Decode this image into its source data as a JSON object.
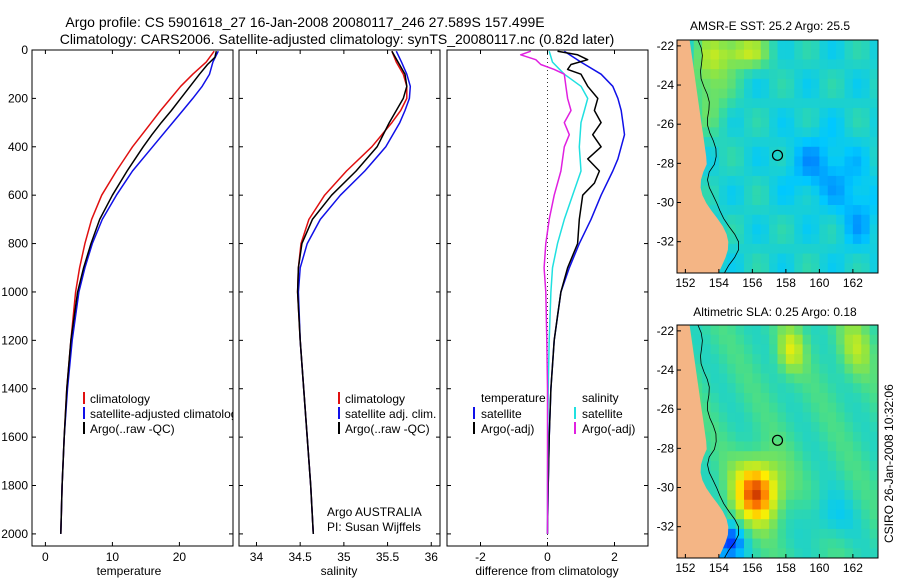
{
  "title": {
    "line1": "Argo profile: CS 5901618_27 16-Jan-2008 20080117_246 27.589S 157.499E",
    "line2": "Climatology: CARS2006. Satellite-adjusted climatology: synTS_20080117.nc (0.82d later)"
  },
  "colors": {
    "climatology": "#e01010",
    "satellite": "#1010e8",
    "argo": "#000000",
    "sal_satellite": "#20e0e0",
    "sal_argo": "#e020e0"
  },
  "chart_data": [
    {
      "id": "temperature",
      "type": "line",
      "xlabel": "temperature",
      "xlim": [
        -2,
        28
      ],
      "ylim": [
        0,
        2050
      ],
      "xticks": [
        0,
        10,
        20
      ],
      "yticks": [
        0,
        200,
        400,
        600,
        800,
        1000,
        1200,
        1400,
        1600,
        1800,
        2000
      ],
      "legend": [
        "climatology",
        "satellite-adjusted climatology",
        "Argo(..raw -QC)"
      ],
      "series": [
        {
          "name": "climatology",
          "color": "#e01010",
          "depth": [
            5,
            50,
            100,
            150,
            200,
            250,
            300,
            400,
            500,
            600,
            700,
            800,
            900,
            1000,
            1200,
            1400,
            1600,
            1800,
            2000
          ],
          "values": [
            25.2,
            24.0,
            22.0,
            20.2,
            18.7,
            17.2,
            15.8,
            13.0,
            10.6,
            8.4,
            6.9,
            5.9,
            5.1,
            4.5,
            3.8,
            3.2,
            2.8,
            2.5,
            2.3
          ]
        },
        {
          "name": "satellite-adjusted climatology",
          "color": "#1010e8",
          "depth": [
            5,
            50,
            100,
            150,
            200,
            250,
            300,
            400,
            500,
            600,
            700,
            800,
            900,
            1000,
            1200,
            1400,
            1600,
            1800,
            2000
          ],
          "values": [
            25.8,
            25.0,
            24.5,
            23.4,
            22.0,
            20.5,
            19.0,
            16.0,
            13.0,
            10.6,
            8.5,
            7.0,
            5.9,
            5.0,
            4.0,
            3.3,
            2.8,
            2.5,
            2.3
          ]
        },
        {
          "name": "Argo(..raw -QC)",
          "color": "#000000",
          "depth": [
            5,
            30,
            60,
            100,
            150,
            200,
            250,
            300,
            350,
            400,
            500,
            600,
            700,
            800,
            900,
            1000,
            1200,
            1400,
            1600,
            1800,
            2000
          ],
          "values": [
            25.5,
            25.3,
            24.2,
            23.0,
            21.6,
            20.2,
            18.8,
            17.3,
            15.9,
            14.6,
            12.2,
            10.0,
            8.1,
            6.8,
            5.7,
            4.8,
            3.8,
            3.2,
            2.8,
            2.5,
            2.3
          ]
        }
      ]
    },
    {
      "id": "salinity",
      "type": "line",
      "xlabel": "salinity",
      "xlim": [
        33.8,
        36.1
      ],
      "ylim": [
        0,
        2050
      ],
      "xticks": [
        34,
        34.5,
        35,
        35.5,
        36
      ],
      "legend": [
        "climatology",
        "satellite adj. clim.",
        "Argo(..raw -QC)"
      ],
      "annotation": [
        "Argo AUSTRALIA",
        "PI: Susan Wijffels"
      ],
      "series": [
        {
          "name": "climatology",
          "color": "#e01010",
          "depth": [
            5,
            50,
            100,
            150,
            200,
            250,
            300,
            400,
            500,
            600,
            700,
            800,
            900,
            1000,
            1200,
            1400,
            1600,
            1800,
            2000
          ],
          "values": [
            35.55,
            35.6,
            35.68,
            35.72,
            35.72,
            35.65,
            35.55,
            35.32,
            35.03,
            34.78,
            34.6,
            34.51,
            34.48,
            34.47,
            34.5,
            34.54,
            34.58,
            34.62,
            34.65
          ]
        },
        {
          "name": "satellite adj. clim.",
          "color": "#1010e8",
          "depth": [
            5,
            50,
            100,
            150,
            200,
            250,
            300,
            400,
            500,
            600,
            700,
            800,
            900,
            1000,
            1200,
            1400,
            1600,
            1800,
            2000
          ],
          "values": [
            35.6,
            35.66,
            35.72,
            35.76,
            35.75,
            35.7,
            35.64,
            35.48,
            35.24,
            34.96,
            34.73,
            34.58,
            34.5,
            34.48,
            34.5,
            34.54,
            34.58,
            34.62,
            34.65
          ]
        },
        {
          "name": "Argo(..raw -QC)",
          "color": "#000000",
          "depth": [
            5,
            50,
            100,
            150,
            200,
            250,
            300,
            400,
            500,
            600,
            700,
            800,
            900,
            1000,
            1200,
            1400,
            1600,
            1800,
            2000
          ],
          "values": [
            35.55,
            35.62,
            35.7,
            35.72,
            35.68,
            35.6,
            35.52,
            35.38,
            35.14,
            34.86,
            34.64,
            34.52,
            34.48,
            34.47,
            34.5,
            34.54,
            34.58,
            34.62,
            34.65
          ]
        }
      ]
    },
    {
      "id": "difference",
      "type": "line",
      "xlabel": "difference from climatology",
      "xlim": [
        -3,
        3
      ],
      "ylim": [
        0,
        2050
      ],
      "xticks": [
        -2,
        0,
        2
      ],
      "legend_headers": [
        "temperature",
        "salinity"
      ],
      "legend": [
        "satellite",
        "Argo(-adj)",
        "satellite",
        "Argo(-adj)"
      ],
      "series": [
        {
          "name": "temperature satellite",
          "color": "#1010e8",
          "depth": [
            5,
            50,
            100,
            150,
            200,
            250,
            300,
            350,
            400,
            450,
            500,
            600,
            700,
            800,
            900,
            1000,
            1200,
            1400,
            1600,
            1800,
            2000
          ],
          "values": [
            0.5,
            1.0,
            1.6,
            1.95,
            2.1,
            2.2,
            2.25,
            2.3,
            2.2,
            2.1,
            1.95,
            1.6,
            1.3,
            0.95,
            0.65,
            0.4,
            0.2,
            0.1,
            0.05,
            0.02,
            0.0
          ]
        },
        {
          "name": "temperature Argo(-adj)",
          "color": "#000000",
          "depth": [
            5,
            20,
            40,
            60,
            80,
            100,
            150,
            200,
            250,
            300,
            350,
            400,
            450,
            500,
            550,
            600,
            700,
            800,
            900,
            1000,
            1100,
            1200,
            1400,
            1600,
            1800,
            2000
          ],
          "values": [
            0.3,
            0.9,
            1.2,
            0.7,
            0.6,
            1.0,
            1.2,
            1.5,
            1.4,
            1.6,
            1.35,
            1.6,
            1.2,
            1.55,
            1.4,
            1.05,
            0.95,
            0.9,
            0.6,
            0.4,
            0.3,
            0.2,
            0.1,
            0.05,
            0.02,
            0.0
          ]
        },
        {
          "name": "salinity satellite",
          "color": "#20e0e0",
          "depth": [
            5,
            50,
            100,
            150,
            200,
            250,
            300,
            400,
            500,
            600,
            700,
            800,
            900,
            1000,
            1200,
            1400,
            1600,
            1800,
            2000
          ],
          "values": [
            0.05,
            0.15,
            0.5,
            1.0,
            1.2,
            1.1,
            1.0,
            0.95,
            1.0,
            0.75,
            0.5,
            0.3,
            0.15,
            0.1,
            0.05,
            0.02,
            0.01,
            0.0,
            0.0
          ]
        },
        {
          "name": "salinity Argo(-adj)",
          "color": "#e020e0",
          "depth": [
            5,
            20,
            40,
            60,
            80,
            100,
            150,
            200,
            250,
            300,
            350,
            400,
            450,
            500,
            600,
            700,
            800,
            900,
            1000,
            1200,
            1400,
            1600,
            1800,
            2000
          ],
          "values": [
            -0.5,
            -0.8,
            -0.35,
            -0.2,
            0.2,
            0.5,
            0.55,
            0.6,
            0.7,
            0.5,
            0.65,
            0.5,
            0.45,
            0.4,
            0.2,
            0.05,
            -0.05,
            -0.1,
            -0.05,
            -0.02,
            0.0,
            0.0,
            0.0,
            0.0
          ]
        }
      ]
    },
    {
      "id": "sst_map",
      "type": "heatmap",
      "title": "AMSR-E SST: 25.2  Argo: 25.5",
      "xlim": [
        151.5,
        163.5
      ],
      "ylim": [
        -33.6,
        -21.7
      ],
      "xticks": [
        152,
        154,
        156,
        158,
        160,
        162
      ],
      "yticks": [
        -22,
        -24,
        -26,
        -28,
        -30,
        -32
      ],
      "marker": {
        "lon": 157.5,
        "lat": -27.59
      }
    },
    {
      "id": "sla_map",
      "type": "heatmap",
      "title": "Altimetric SLA: 0.25  Argo: 0.18",
      "xlim": [
        151.5,
        163.5
      ],
      "ylim": [
        -33.6,
        -21.7
      ],
      "xticks": [
        152,
        154,
        156,
        158,
        160,
        162
      ],
      "yticks": [
        -22,
        -24,
        -26,
        -28,
        -30,
        -32
      ],
      "marker": {
        "lon": 157.5,
        "lat": -27.59
      }
    }
  ],
  "footer": {
    "stamp": "CSIRO 26-Jan-2008 10:32:06"
  }
}
